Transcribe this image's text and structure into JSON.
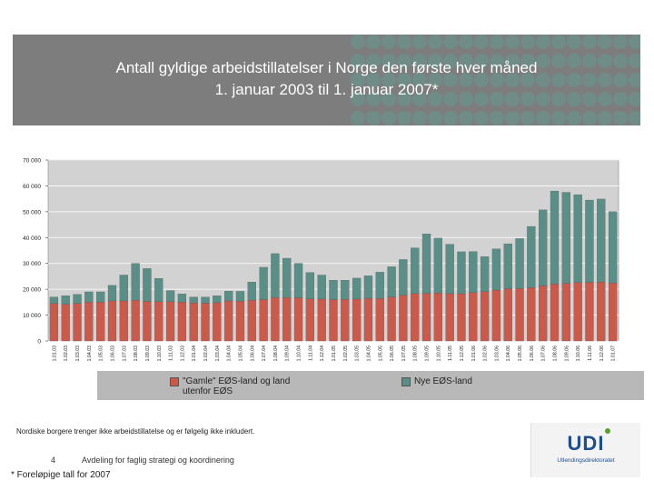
{
  "header": {
    "title_line1": "Antall gyldige arbeidstillatelser i Norge den første hver måned",
    "title_line2": "1. januar 2003 til 1. januar 2007*"
  },
  "legend": {
    "series1": "\"Gamle\" EØS-land og land utenfor EØS",
    "series2": "Nye EØS-land"
  },
  "footnote": "Nordiske borgere trenger ikke arbeidstillatelse og er følgelig ikke inkludert.",
  "page_number": "4",
  "department": "Avdeling for faglig strategi og koordinering",
  "preliminary_note": "* Foreløpige tall for 2007",
  "logo": {
    "name": "UDI",
    "subtitle": "Utlendingsdirektoratet"
  },
  "colors": {
    "series1": "#cc5a4a",
    "series2": "#5a8f88",
    "plot_bg": "#d2d2d2",
    "header_bg": "#7d7d7d",
    "header_dots": "#6f8c86"
  },
  "chart_data": {
    "type": "bar",
    "stacked": true,
    "title": "Antall gyldige arbeidstillatelser i Norge den første hver måned 1. januar 2003 til 1. januar 2007*",
    "ylim": [
      0,
      70000
    ],
    "y_ticks": [
      0,
      10000,
      20000,
      30000,
      40000,
      50000,
      60000,
      70000
    ],
    "y_tick_labels": [
      "0",
      "10 000",
      "20 000",
      "30 000",
      "40 000",
      "50 000",
      "60 000",
      "70 000"
    ],
    "categories": [
      "1.01.03",
      "1.02.03",
      "1.03.03",
      "1.04.03",
      "1.05.03",
      "1.06.03",
      "1.07.03",
      "1.08.03",
      "1.09.03",
      "1.10.03",
      "1.11.03",
      "1.12.03",
      "1.01.04",
      "1.02.04",
      "1.03.04",
      "1.04.04",
      "1.05.04",
      "1.06.04",
      "1.07.04",
      "1.08.04",
      "1.09.04",
      "1.10.04",
      "1.11.04",
      "1.12.04",
      "1.01.05",
      "1.02.05",
      "1.03.05",
      "1.04.05",
      "1.05.05",
      "1.06.05",
      "1.07.05",
      "1.08.05",
      "1.09.05",
      "1.10.05",
      "1.11.05",
      "1.12.05",
      "1.01.06",
      "1.02.06",
      "1.03.06",
      "1.04.06",
      "1.05.06",
      "1.06.06",
      "1.07.06",
      "1.08.06",
      "1.09.06",
      "1.10.06",
      "1.11.06",
      "1.12.06",
      "1.01.07"
    ],
    "series": [
      {
        "name": "\"Gamle\" EØS-land og land utenfor EØS",
        "values": [
          14500,
          14200,
          14500,
          15000,
          15000,
          15500,
          15500,
          15800,
          15300,
          15200,
          15200,
          15000,
          14700,
          14600,
          14800,
          15500,
          15400,
          15800,
          16000,
          16800,
          16800,
          16700,
          16300,
          16200,
          16000,
          16100,
          16200,
          16500,
          16400,
          17000,
          17700,
          18300,
          18400,
          18500,
          18300,
          18300,
          18700,
          19100,
          19700,
          20200,
          20300,
          20600,
          21300,
          22000,
          22300,
          22600,
          22700,
          22800,
          22400
        ]
      },
      {
        "name": "Nye EØS-land",
        "values": [
          2500,
          3300,
          3500,
          4000,
          4000,
          6000,
          10000,
          14200,
          12700,
          9000,
          4300,
          3200,
          2300,
          2400,
          2700,
          3800,
          3800,
          7000,
          12500,
          17000,
          15200,
          13300,
          10200,
          9300,
          7500,
          7400,
          8100,
          8700,
          10200,
          11700,
          13800,
          17700,
          23000,
          21300,
          19100,
          16200,
          15900,
          13500,
          15900,
          17400,
          19300,
          23700,
          29400,
          36000,
          35200,
          34000,
          31800,
          32100,
          27600
        ]
      }
    ],
    "xlabel": "",
    "ylabel": "",
    "legend_position": "bottom"
  }
}
